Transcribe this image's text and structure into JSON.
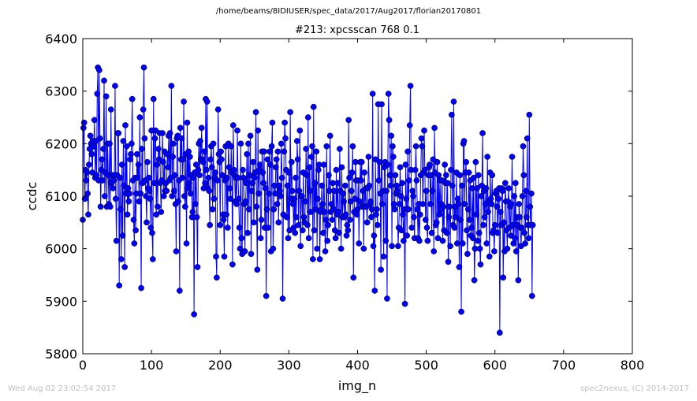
{
  "header": {
    "path": "/home/beams/8IDIUSER/spec_data/2017/Aug2017/florian20170801"
  },
  "footer": {
    "timestamp": "Wed Aug 02 23:02:54 2017",
    "credit": "spec2nexus, (C) 2014-2017"
  },
  "chart_data": {
    "type": "line",
    "title": "#213: xpcsscan 768 0.1",
    "xlabel": "img_n",
    "ylabel": "ccdc",
    "xlim": [
      0,
      800
    ],
    "ylim": [
      5800,
      6400
    ],
    "xticks": [
      0,
      100,
      200,
      300,
      400,
      500,
      600,
      700,
      800
    ],
    "yticks": [
      5800,
      5900,
      6000,
      6100,
      6200,
      6300,
      6400
    ],
    "xtick_labels": [
      "0",
      "100",
      "200",
      "300",
      "400",
      "500",
      "600",
      "700",
      "800"
    ],
    "ytick_labels": [
      "5800",
      "5900",
      "6000",
      "6100",
      "6200",
      "6300",
      "6400"
    ],
    "grid": false,
    "legend": "none",
    "marker": "circle",
    "color": "#0000ff",
    "series": [
      {
        "x_start": 0,
        "x_step": 1,
        "values": [
          6055,
          6230,
          6240,
          6095,
          6150,
          6130,
          6145,
          6105,
          6065,
          6160,
          6190,
          6215,
          6200,
          6180,
          6145,
          6205,
          6195,
          6245,
          6135,
          6205,
          6140,
          6295,
          6345,
          6130,
          6340,
          6210,
          6080,
          6150,
          6170,
          6130,
          6190,
          6320,
          6100,
          6145,
          6290,
          6080,
          6200,
          6140,
          6085,
          6200,
          6080,
          6265,
          6125,
          6140,
          6115,
          6130,
          6140,
          6310,
          6095,
          6015,
          6140,
          6220,
          6220,
          5930,
          6135,
          6075,
          5980,
          6160,
          6025,
          6205,
          6120,
          5965,
          6235,
          6105,
          6195,
          6065,
          6115,
          6090,
          6105,
          6170,
          6180,
          6200,
          6285,
          6130,
          6055,
          6010,
          6135,
          6035,
          6105,
          6180,
          6135,
          6160,
          6090,
          6250,
          6105,
          5925,
          6190,
          6125,
          6265,
          6345,
          6210,
          6130,
          6100,
          6050,
          6165,
          6115,
          6135,
          6110,
          6095,
          6040,
          6225,
          6030,
          5980,
          6285,
          6125,
          6210,
          6225,
          6065,
          6160,
          6080,
          6190,
          6170,
          6220,
          6125,
          6070,
          6130,
          6220,
          6165,
          6100,
          6185,
          6110,
          6125,
          6110,
          6180,
          6155,
          6215,
          6130,
          6220,
          6135,
          6310,
          6100,
          6175,
          6200,
          6110,
          6140,
          6085,
          5995,
          6210,
          6215,
          6090,
          6130,
          5920,
          6230,
          6170,
          6210,
          6135,
          6170,
          6280,
          6100,
          6080,
          6180,
          6010,
          6240,
          6115,
          6185,
          6125,
          6175,
          6105,
          6140,
          6060,
          6070,
          6135,
          5875,
          6145,
          6085,
          6160,
          6060,
          5965,
          6150,
          6200,
          6140,
          6205,
          6170,
          6230,
          6170,
          6165,
          6115,
          6185,
          6125,
          6285,
          6150,
          6280,
          6115,
          6135,
          6110,
          6045,
          6170,
          6195,
          6155,
          6075,
          6200,
          6095,
          6135,
          6145,
          5985,
          5945,
          6130,
          6265,
          6180,
          6165,
          6045,
          6185,
          6170,
          6140,
          6065,
          6055,
          5985,
          6130,
          6195,
          6065,
          6135,
          6040,
          6200,
          6155,
          6115,
          6095,
          6195,
          6145,
          5970,
          6235,
          6150,
          6140,
          6090,
          6135,
          6085,
          6225,
          6135,
          6095,
          6040,
          6000,
          6200,
          6020,
          5990,
          6150,
          6135,
          6085,
          5995,
          6090,
          6125,
          6180,
          6030,
          6200,
          6075,
          6140,
          6215,
          5990,
          6110,
          6125,
          6165,
          6050,
          6135,
          6145,
          6260,
          6080,
          5960,
          6225,
          6105,
          6150,
          6160,
          6020,
          6055,
          6185,
          6145,
          6125,
          6185,
          6040,
          6115,
          5910,
          6075,
          6170,
          6040,
          6105,
          6185,
          6160,
          5995,
          6195,
          6240,
          6000,
          6075,
          6120,
          6105,
          6155,
          6170,
          6085,
          6185,
          6050,
          6120,
          6110,
          6100,
          6200,
          6135,
          5905,
          6065,
          6185,
          6240,
          6210,
          6150,
          6060,
          6120,
          6020,
          6145,
          6035,
          6260,
          6095,
          6165,
          6110,
          6085,
          6040,
          6095,
          6030,
          6135,
          6060,
          6205,
          6170,
          6045,
          6110,
          6225,
          6005,
          6100,
          6100,
          6035,
          6145,
          6060,
          6050,
          6090,
          6190,
          6140,
          6045,
          6250,
          6020,
          6155,
          6110,
          6070,
          6175,
          6195,
          5980,
          6270,
          6035,
          6125,
          6075,
          6185,
          6000,
          6095,
          6150,
          6160,
          5980,
          6070,
          6075,
          6120,
          6085,
          6030,
          6160,
          6070,
          5995,
          6055,
          6195,
          6015,
          6045,
          6140,
          6110,
          6215,
          6070,
          6085,
          6055,
          6125,
          6075,
          6110,
          6035,
          6020,
          6150,
          6065,
          6125,
          6070,
          6030,
          6190,
          6110,
          6000,
          6155,
          6060,
          6105,
          6090,
          6060,
          6120,
          6065,
          6025,
          6045,
          6035,
          6245,
          6135,
          6055,
          6090,
          6110,
          6145,
          6195,
          5945,
          6070,
          6095,
          6165,
          6130,
          6065,
          6075,
          6130,
          6010,
          6090,
          6165,
          6130,
          6165,
          6080,
          6110,
          6000,
          6145,
          6080,
          6115,
          6080,
          6050,
          6115,
          6175,
          6120,
          6085,
          6090,
          6060,
          6075,
          6295,
          6005,
          6025,
          5920,
          6170,
          6065,
          6075,
          6045,
          6275,
          6130,
          6165,
          6105,
          5960,
          6275,
          6085,
          6110,
          5985,
          6155,
          6165,
          6015,
          6110,
          5905,
          6160,
          6295,
          6245,
          6140,
          6120,
          6215,
          6005,
          6195,
          6175,
          6085,
          6075,
          6140,
          6105,
          6120,
          6110,
          6005,
          6040,
          6085,
          6155,
          6100,
          6035,
          6125,
          6065,
          6015,
          6075,
          5895,
          6160,
          6095,
          6025,
          6185,
          6075,
          6130,
          6235,
          6310,
          6150,
          6040,
          6110,
          6100,
          6060,
          6020,
          6150,
          6195,
          6130,
          6075,
          6020,
          6085,
          6015,
          6065,
          6140,
          6210,
          6195,
          6085,
          6145,
          6225,
          6150,
          6055,
          6110,
          6040,
          6015,
          6140,
          6155,
          6160,
          6085,
          6140,
          6030,
          6110,
          6170,
          5995,
          6230,
          6145,
          6045,
          6050,
          6165,
          6020,
          6140,
          6065,
          6130,
          6075,
          6085,
          6130,
          6015,
          6080,
          6035,
          6160,
          6125,
          6140,
          6030,
          6125,
          5975,
          6060,
          6080,
          6005,
          6150,
          6255,
          6120,
          6045,
          6280,
          6040,
          6080,
          6060,
          6145,
          6010,
          6095,
          6085,
          5965,
          6140,
          6055,
          5880,
          6120,
          6010,
          6200,
          6205,
          6085,
          6145,
          6165,
          6035,
          5990,
          6075,
          6145,
          6055,
          6130,
          6025,
          6040,
          6115,
          6020,
          6135,
          5940,
          6000,
          6165,
          6065,
          6115,
          6015,
          6140,
          6030,
          6000,
          5970,
          6100,
          6120,
          6220,
          6045,
          6110,
          6060,
          6085,
          6115,
          6010,
          6175,
          6070,
          6090,
          5985,
          6145,
          6095,
          6085,
          6140,
          6030,
          6035,
          5995,
          6045,
          6105,
          6110,
          6080,
          6030,
          6095,
          6115,
          5840,
          6070,
          6045,
          6115,
          6110,
          5945,
          6050,
          5995,
          6125,
          6090,
          6035,
          6000,
          6090,
          6115,
          6040,
          6080,
          6025,
          6085,
          6175,
          6045,
          6010,
          6100,
          6020,
          6125,
          5995,
          6060,
          6045,
          5940,
          6085,
          6060,
          6040,
          6005,
          6040,
          6100,
          6195,
          6140,
          6030,
          6010,
          6110,
          6060,
          6210,
          6045,
          6020,
          6255,
          6080,
          6045,
          6105,
          5910,
          6045
        ]
      }
    ]
  }
}
